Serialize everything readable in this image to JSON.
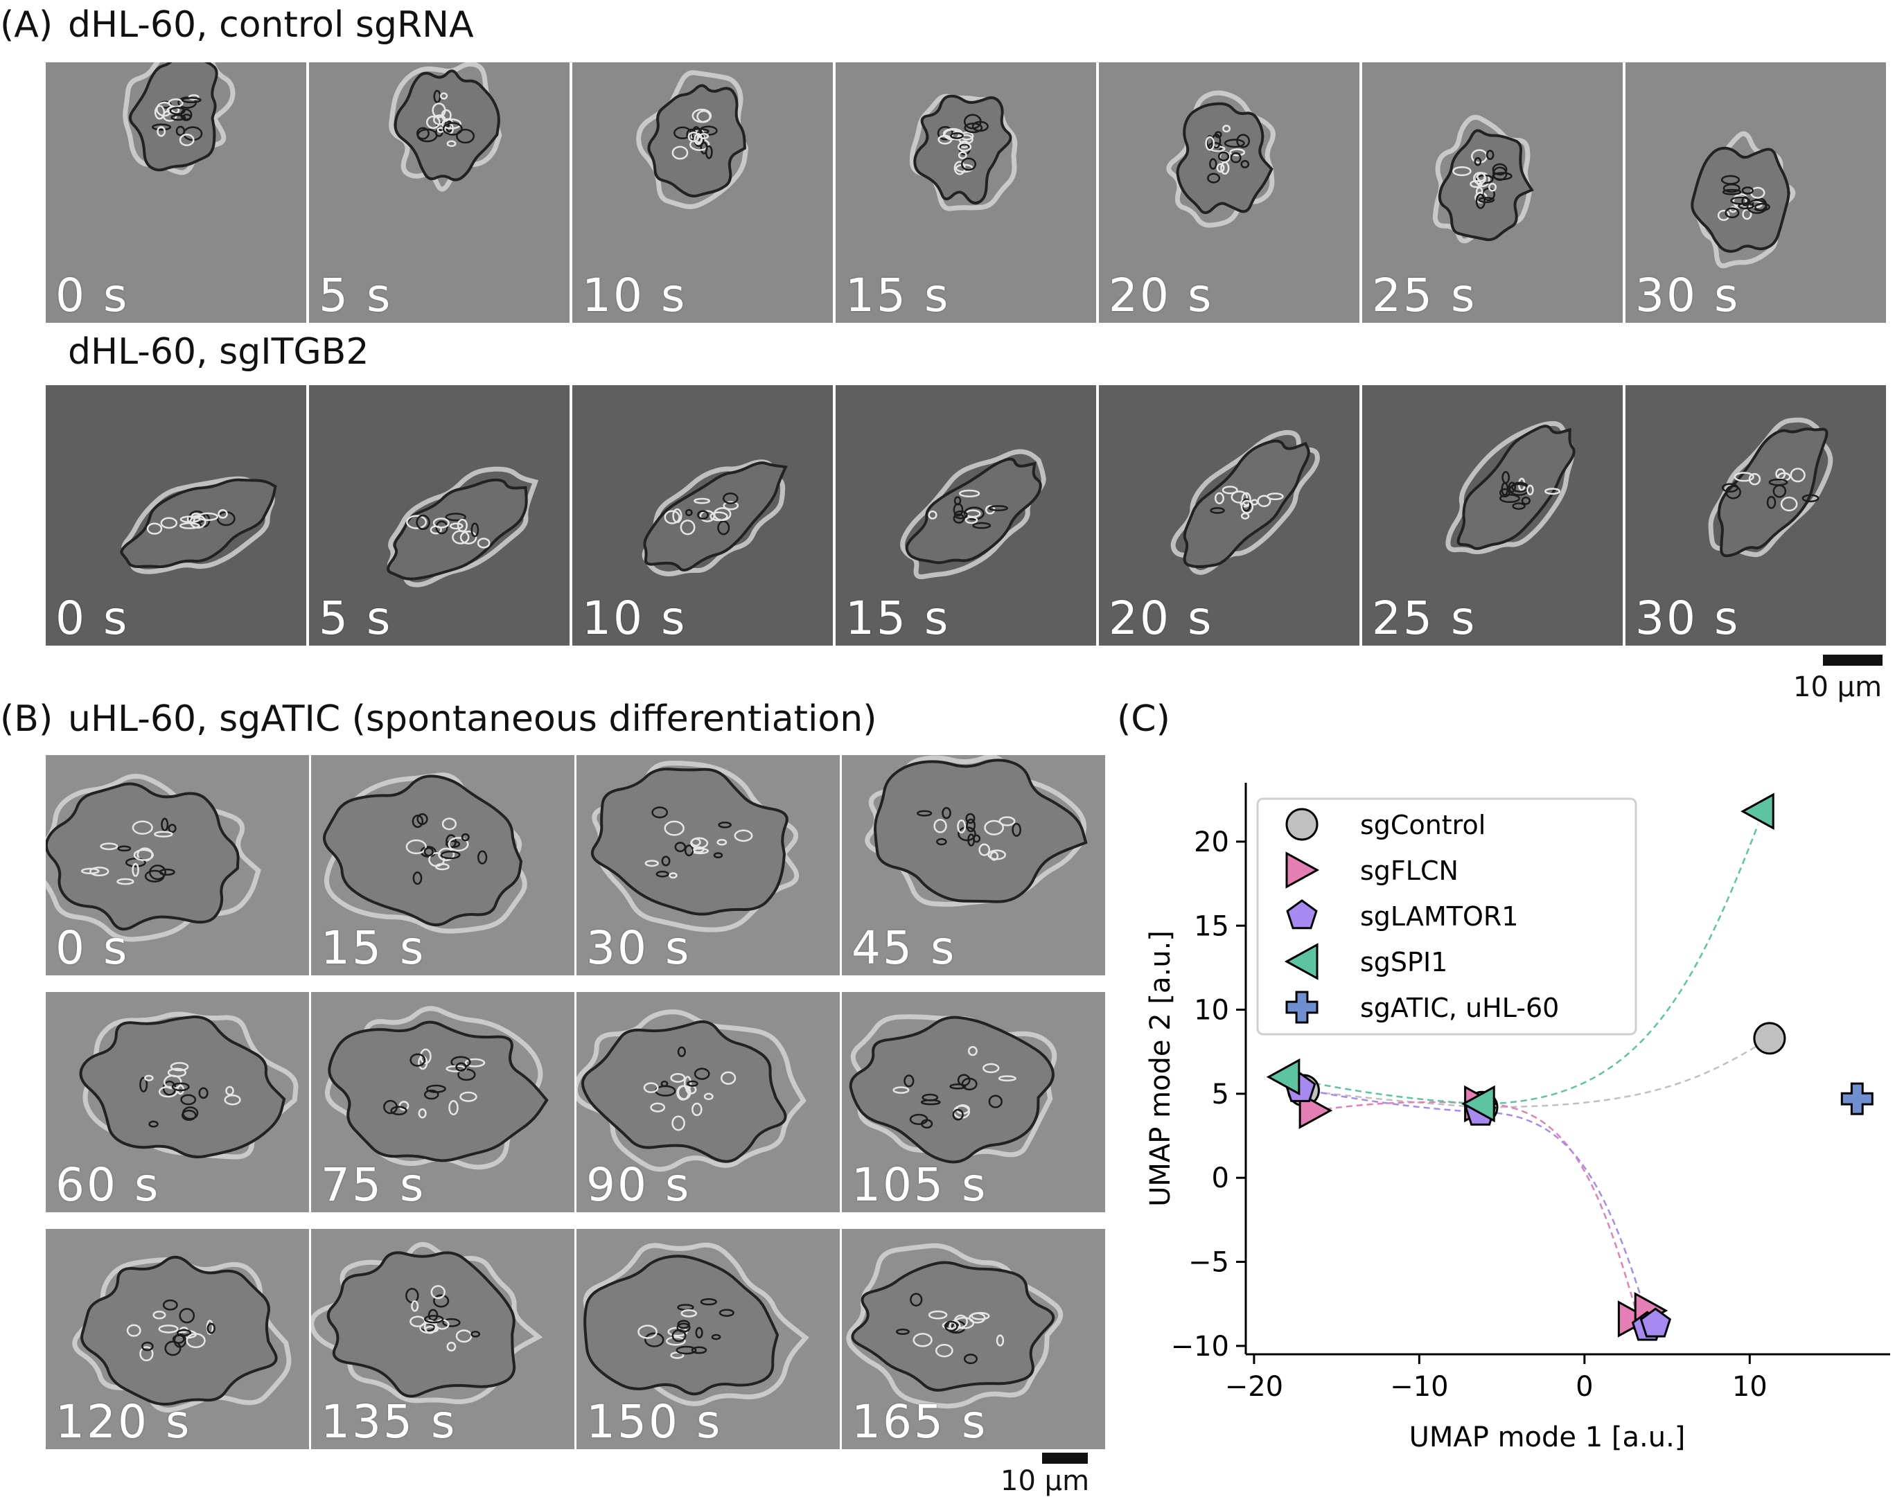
{
  "panel_a": {
    "letter": "(A)",
    "row1_title": "dHL-60, control sgRNA",
    "row2_title": "dHL-60, sgITGB2",
    "row1_times": [
      "0 s",
      "5 s",
      "10 s",
      "15 s",
      "20 s",
      "25 s",
      "30 s"
    ],
    "row2_times": [
      "0 s",
      "5 s",
      "10 s",
      "15 s",
      "20 s",
      "25 s",
      "30 s"
    ],
    "scale_label": "10 µm"
  },
  "panel_b": {
    "letter": "(B)",
    "title": "uHL-60, sgATIC (spontaneous differentiation)",
    "times": [
      "0 s",
      "15 s",
      "30 s",
      "45 s",
      "60 s",
      "75 s",
      "90 s",
      "105 s",
      "120 s",
      "135 s",
      "150 s",
      "165 s"
    ],
    "scale_label": "10 µm"
  },
  "panel_c": {
    "letter": "(C)"
  },
  "chart_data": {
    "type": "scatter",
    "xlabel": "UMAP mode 1 [a.u.]",
    "ylabel": "UMAP mode 2 [a.u.]",
    "xlim": [
      -20.5,
      18.5
    ],
    "ylim": [
      -10.5,
      23.5
    ],
    "xticks": [
      -20,
      -10,
      0,
      10
    ],
    "xtick_labels": [
      "−20",
      "−10",
      "0",
      "10"
    ],
    "yticks": [
      -10,
      -5,
      0,
      5,
      10,
      15,
      20
    ],
    "ytick_labels": [
      "−10",
      "−5",
      "0",
      "5",
      "10",
      "15",
      "20"
    ],
    "legend_position": "top-left",
    "series": [
      {
        "name": "sgControl",
        "marker": "circle",
        "color": "#c0c0c0",
        "points": [
          [
            -17.0,
            5.2
          ],
          [
            -6.2,
            4.2
          ],
          [
            11.2,
            8.3
          ],
          [
            3.8,
            -8.5
          ]
        ],
        "path": [
          [
            -17.0,
            5.2
          ],
          [
            -6.2,
            4.2
          ],
          [
            11.2,
            8.3
          ]
        ]
      },
      {
        "name": "sgFLCN",
        "marker": "triangle-right",
        "color": "#e47fb5",
        "points": [
          [
            -16.3,
            4.0
          ],
          [
            -6.3,
            4.4
          ],
          [
            3.0,
            -8.4
          ],
          [
            4.0,
            -7.9
          ]
        ],
        "path": [
          [
            -16.3,
            4.0
          ],
          [
            -6.3,
            4.4
          ],
          [
            3.2,
            -8.2
          ]
        ]
      },
      {
        "name": "sgLAMTOR1",
        "marker": "pentagon",
        "color": "#a78af0",
        "points": [
          [
            -17.2,
            5.3
          ],
          [
            -6.3,
            3.9
          ],
          [
            3.8,
            -8.9
          ],
          [
            4.3,
            -8.7
          ]
        ],
        "path": [
          [
            -17.2,
            5.3
          ],
          [
            -6.3,
            3.9
          ],
          [
            3.9,
            -8.6
          ]
        ]
      },
      {
        "name": "sgSPI1",
        "marker": "triangle-left",
        "color": "#5cc4a1",
        "points": [
          [
            -18.2,
            6.0
          ],
          [
            -6.4,
            4.4
          ],
          [
            10.5,
            21.8
          ]
        ],
        "path": [
          [
            -18.2,
            6.0
          ],
          [
            -6.4,
            4.4
          ],
          [
            10.5,
            21.0
          ]
        ]
      },
      {
        "name": "sgATIC, uHL-60",
        "marker": "plus",
        "color": "#6f8fd0",
        "points": [
          [
            16.5,
            4.7
          ]
        ]
      }
    ]
  }
}
